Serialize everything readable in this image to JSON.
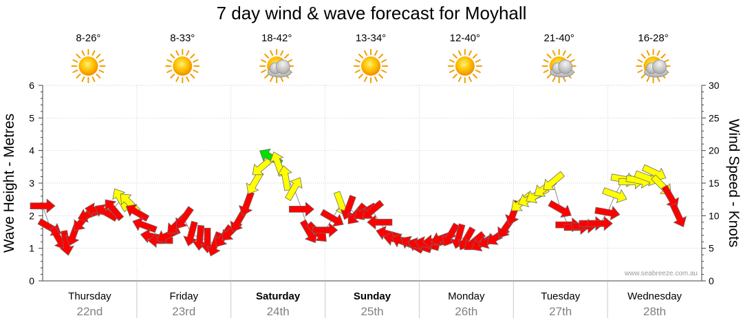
{
  "chart_data": {
    "type": "line",
    "title": "7 day wind & wave forecast for Moyhall",
    "ylabel_left": "Wave Height - Metres",
    "ylabel_right": "Wind Speed - Knots",
    "ylim_left": [
      0,
      6
    ],
    "ylim_right": [
      0,
      30
    ],
    "yticks_left": [
      "0",
      "1",
      "2",
      "3",
      "4",
      "5",
      "6"
    ],
    "yticks_right": [
      "0",
      "5",
      "10",
      "15",
      "20",
      "25",
      "30"
    ],
    "credit": "www.seabreeze.com.au",
    "grid": true,
    "colors": {
      "red": "#ff0000",
      "yellow": "#ffff00",
      "green": "#00e000",
      "outline": "#6b6b6b"
    },
    "days": [
      {
        "name": "Thursday",
        "date": "22nd",
        "temp": "8-26°",
        "icon": "sun-icon",
        "bold": false
      },
      {
        "name": "Friday",
        "date": "23rd",
        "temp": "8-33°",
        "icon": "sun-icon",
        "bold": false
      },
      {
        "name": "Saturday",
        "date": "24th",
        "temp": "18-42°",
        "icon": "sun-cloud-icon",
        "bold": true
      },
      {
        "name": "Sunday",
        "date": "25th",
        "temp": "13-34°",
        "icon": "sun-icon",
        "bold": true
      },
      {
        "name": "Monday",
        "date": "26th",
        "temp": "12-40°",
        "icon": "sun-icon",
        "bold": false
      },
      {
        "name": "Tuesday",
        "date": "27th",
        "temp": "21-40°",
        "icon": "sun-cloud-icon",
        "bold": false
      },
      {
        "name": "Wednesday",
        "date": "28th",
        "temp": "16-28°",
        "icon": "sun-cloud-icon",
        "bold": false
      }
    ],
    "x_unit": "day",
    "wind_series": [
      {
        "x": 0.0,
        "y": 11.5,
        "dir": 90,
        "color": "red"
      },
      {
        "x": 0.08,
        "y": 8.2,
        "dir": 120,
        "color": "red"
      },
      {
        "x": 0.17,
        "y": 6.5,
        "dir": 150,
        "color": "red"
      },
      {
        "x": 0.25,
        "y": 5.8,
        "dir": 170,
        "color": "red"
      },
      {
        "x": 0.33,
        "y": 7.2,
        "dir": 200,
        "color": "red"
      },
      {
        "x": 0.42,
        "y": 9.2,
        "dir": 220,
        "color": "red"
      },
      {
        "x": 0.5,
        "y": 10.2,
        "dir": 250,
        "color": "red"
      },
      {
        "x": 0.58,
        "y": 10.8,
        "dir": 280,
        "color": "red"
      },
      {
        "x": 0.67,
        "y": 10.5,
        "dir": 300,
        "color": "red"
      },
      {
        "x": 0.75,
        "y": 11.0,
        "dir": 320,
        "color": "red"
      },
      {
        "x": 0.83,
        "y": 12.5,
        "dir": 330,
        "color": "yellow"
      },
      {
        "x": 0.92,
        "y": 12.0,
        "dir": 315,
        "color": "yellow"
      },
      {
        "x": 1.0,
        "y": 10.5,
        "dir": 300,
        "color": "red"
      },
      {
        "x": 1.08,
        "y": 8.5,
        "dir": 290,
        "color": "red"
      },
      {
        "x": 1.17,
        "y": 6.8,
        "dir": 280,
        "color": "red"
      },
      {
        "x": 1.25,
        "y": 6.2,
        "dir": 270,
        "color": "red"
      },
      {
        "x": 1.33,
        "y": 7.0,
        "dir": 245,
        "color": "red"
      },
      {
        "x": 1.42,
        "y": 8.6,
        "dir": 225,
        "color": "red"
      },
      {
        "x": 1.5,
        "y": 9.6,
        "dir": 215,
        "color": "red"
      },
      {
        "x": 1.58,
        "y": 7.2,
        "dir": 195,
        "color": "red"
      },
      {
        "x": 1.67,
        "y": 6.6,
        "dir": 185,
        "color": "red"
      },
      {
        "x": 1.75,
        "y": 6.2,
        "dir": 180,
        "color": "red"
      },
      {
        "x": 1.83,
        "y": 5.6,
        "dir": 200,
        "color": "red"
      },
      {
        "x": 1.92,
        "y": 6.8,
        "dir": 215,
        "color": "red"
      },
      {
        "x": 2.0,
        "y": 7.6,
        "dir": 225,
        "color": "red"
      },
      {
        "x": 2.08,
        "y": 9.2,
        "dir": 210,
        "color": "red"
      },
      {
        "x": 2.17,
        "y": 11.8,
        "dir": 200,
        "color": "red"
      },
      {
        "x": 2.25,
        "y": 15.0,
        "dir": 210,
        "color": "yellow"
      },
      {
        "x": 2.33,
        "y": 17.5,
        "dir": 230,
        "color": "yellow"
      },
      {
        "x": 2.42,
        "y": 19.0,
        "dir": 300,
        "color": "green"
      },
      {
        "x": 2.5,
        "y": 18.0,
        "dir": 340,
        "color": "yellow"
      },
      {
        "x": 2.58,
        "y": 15.8,
        "dir": 350,
        "color": "yellow"
      },
      {
        "x": 2.67,
        "y": 14.2,
        "dir": 30,
        "color": "yellow"
      },
      {
        "x": 2.75,
        "y": 11.0,
        "dir": 90,
        "color": "red"
      },
      {
        "x": 2.83,
        "y": 7.5,
        "dir": 150,
        "color": "red"
      },
      {
        "x": 2.92,
        "y": 7.4,
        "dir": 135,
        "color": "red"
      },
      {
        "x": 3.0,
        "y": 7.8,
        "dir": 90,
        "color": "red"
      },
      {
        "x": 3.08,
        "y": 9.6,
        "dir": 120,
        "color": "red"
      },
      {
        "x": 3.17,
        "y": 11.8,
        "dir": 160,
        "color": "yellow"
      },
      {
        "x": 3.25,
        "y": 11.2,
        "dir": 200,
        "color": "red"
      },
      {
        "x": 3.33,
        "y": 10.2,
        "dir": 220,
        "color": "red"
      },
      {
        "x": 3.42,
        "y": 10.6,
        "dir": 240,
        "color": "red"
      },
      {
        "x": 3.5,
        "y": 10.8,
        "dir": 230,
        "color": "red"
      },
      {
        "x": 3.58,
        "y": 9.0,
        "dir": 270,
        "color": "red"
      },
      {
        "x": 3.67,
        "y": 7.2,
        "dir": 285,
        "color": "red"
      },
      {
        "x": 3.75,
        "y": 6.4,
        "dir": 280,
        "color": "red"
      },
      {
        "x": 3.83,
        "y": 6.0,
        "dir": 290,
        "color": "red"
      },
      {
        "x": 3.92,
        "y": 5.6,
        "dir": 300,
        "color": "red"
      },
      {
        "x": 4.0,
        "y": 5.4,
        "dir": 290,
        "color": "red"
      },
      {
        "x": 4.08,
        "y": 5.6,
        "dir": 285,
        "color": "red"
      },
      {
        "x": 4.17,
        "y": 6.0,
        "dir": 270,
        "color": "red"
      },
      {
        "x": 4.25,
        "y": 6.6,
        "dir": 250,
        "color": "red"
      },
      {
        "x": 4.33,
        "y": 7.0,
        "dir": 210,
        "color": "red"
      },
      {
        "x": 4.42,
        "y": 6.8,
        "dir": 195,
        "color": "red"
      },
      {
        "x": 4.5,
        "y": 6.4,
        "dir": 210,
        "color": "red"
      },
      {
        "x": 4.58,
        "y": 6.0,
        "dir": 230,
        "color": "red"
      },
      {
        "x": 4.67,
        "y": 5.8,
        "dir": 240,
        "color": "red"
      },
      {
        "x": 4.75,
        "y": 6.2,
        "dir": 245,
        "color": "red"
      },
      {
        "x": 4.83,
        "y": 6.8,
        "dir": 235,
        "color": "red"
      },
      {
        "x": 4.92,
        "y": 8.2,
        "dir": 215,
        "color": "red"
      },
      {
        "x": 5.0,
        "y": 10.4,
        "dir": 200,
        "color": "red"
      },
      {
        "x": 5.08,
        "y": 12.0,
        "dir": 230,
        "color": "yellow"
      },
      {
        "x": 5.17,
        "y": 12.6,
        "dir": 245,
        "color": "yellow"
      },
      {
        "x": 5.25,
        "y": 13.2,
        "dir": 240,
        "color": "yellow"
      },
      {
        "x": 5.33,
        "y": 14.2,
        "dir": 235,
        "color": "yellow"
      },
      {
        "x": 5.42,
        "y": 15.2,
        "dir": 230,
        "color": "yellow"
      },
      {
        "x": 5.5,
        "y": 11.0,
        "dir": 120,
        "color": "red"
      },
      {
        "x": 5.58,
        "y": 8.6,
        "dir": 90,
        "color": "red"
      },
      {
        "x": 5.67,
        "y": 8.2,
        "dir": 90,
        "color": "red"
      },
      {
        "x": 5.75,
        "y": 8.4,
        "dir": 90,
        "color": "red"
      },
      {
        "x": 5.83,
        "y": 8.8,
        "dir": 90,
        "color": "red"
      },
      {
        "x": 5.92,
        "y": 8.8,
        "dir": 90,
        "color": "red"
      },
      {
        "x": 6.0,
        "y": 10.5,
        "dir": 100,
        "color": "red"
      },
      {
        "x": 6.08,
        "y": 13.2,
        "dir": 110,
        "color": "yellow"
      },
      {
        "x": 6.17,
        "y": 15.6,
        "dir": 100,
        "color": "yellow"
      },
      {
        "x": 6.25,
        "y": 15.2,
        "dir": 90,
        "color": "yellow"
      },
      {
        "x": 6.33,
        "y": 15.4,
        "dir": 100,
        "color": "yellow"
      },
      {
        "x": 6.42,
        "y": 15.8,
        "dir": 110,
        "color": "yellow"
      },
      {
        "x": 6.5,
        "y": 16.6,
        "dir": 115,
        "color": "yellow"
      },
      {
        "x": 6.58,
        "y": 14.6,
        "dir": 135,
        "color": "yellow"
      },
      {
        "x": 6.67,
        "y": 12.8,
        "dir": 150,
        "color": "red"
      },
      {
        "x": 6.75,
        "y": 10.0,
        "dir": 155,
        "color": "red"
      }
    ]
  }
}
